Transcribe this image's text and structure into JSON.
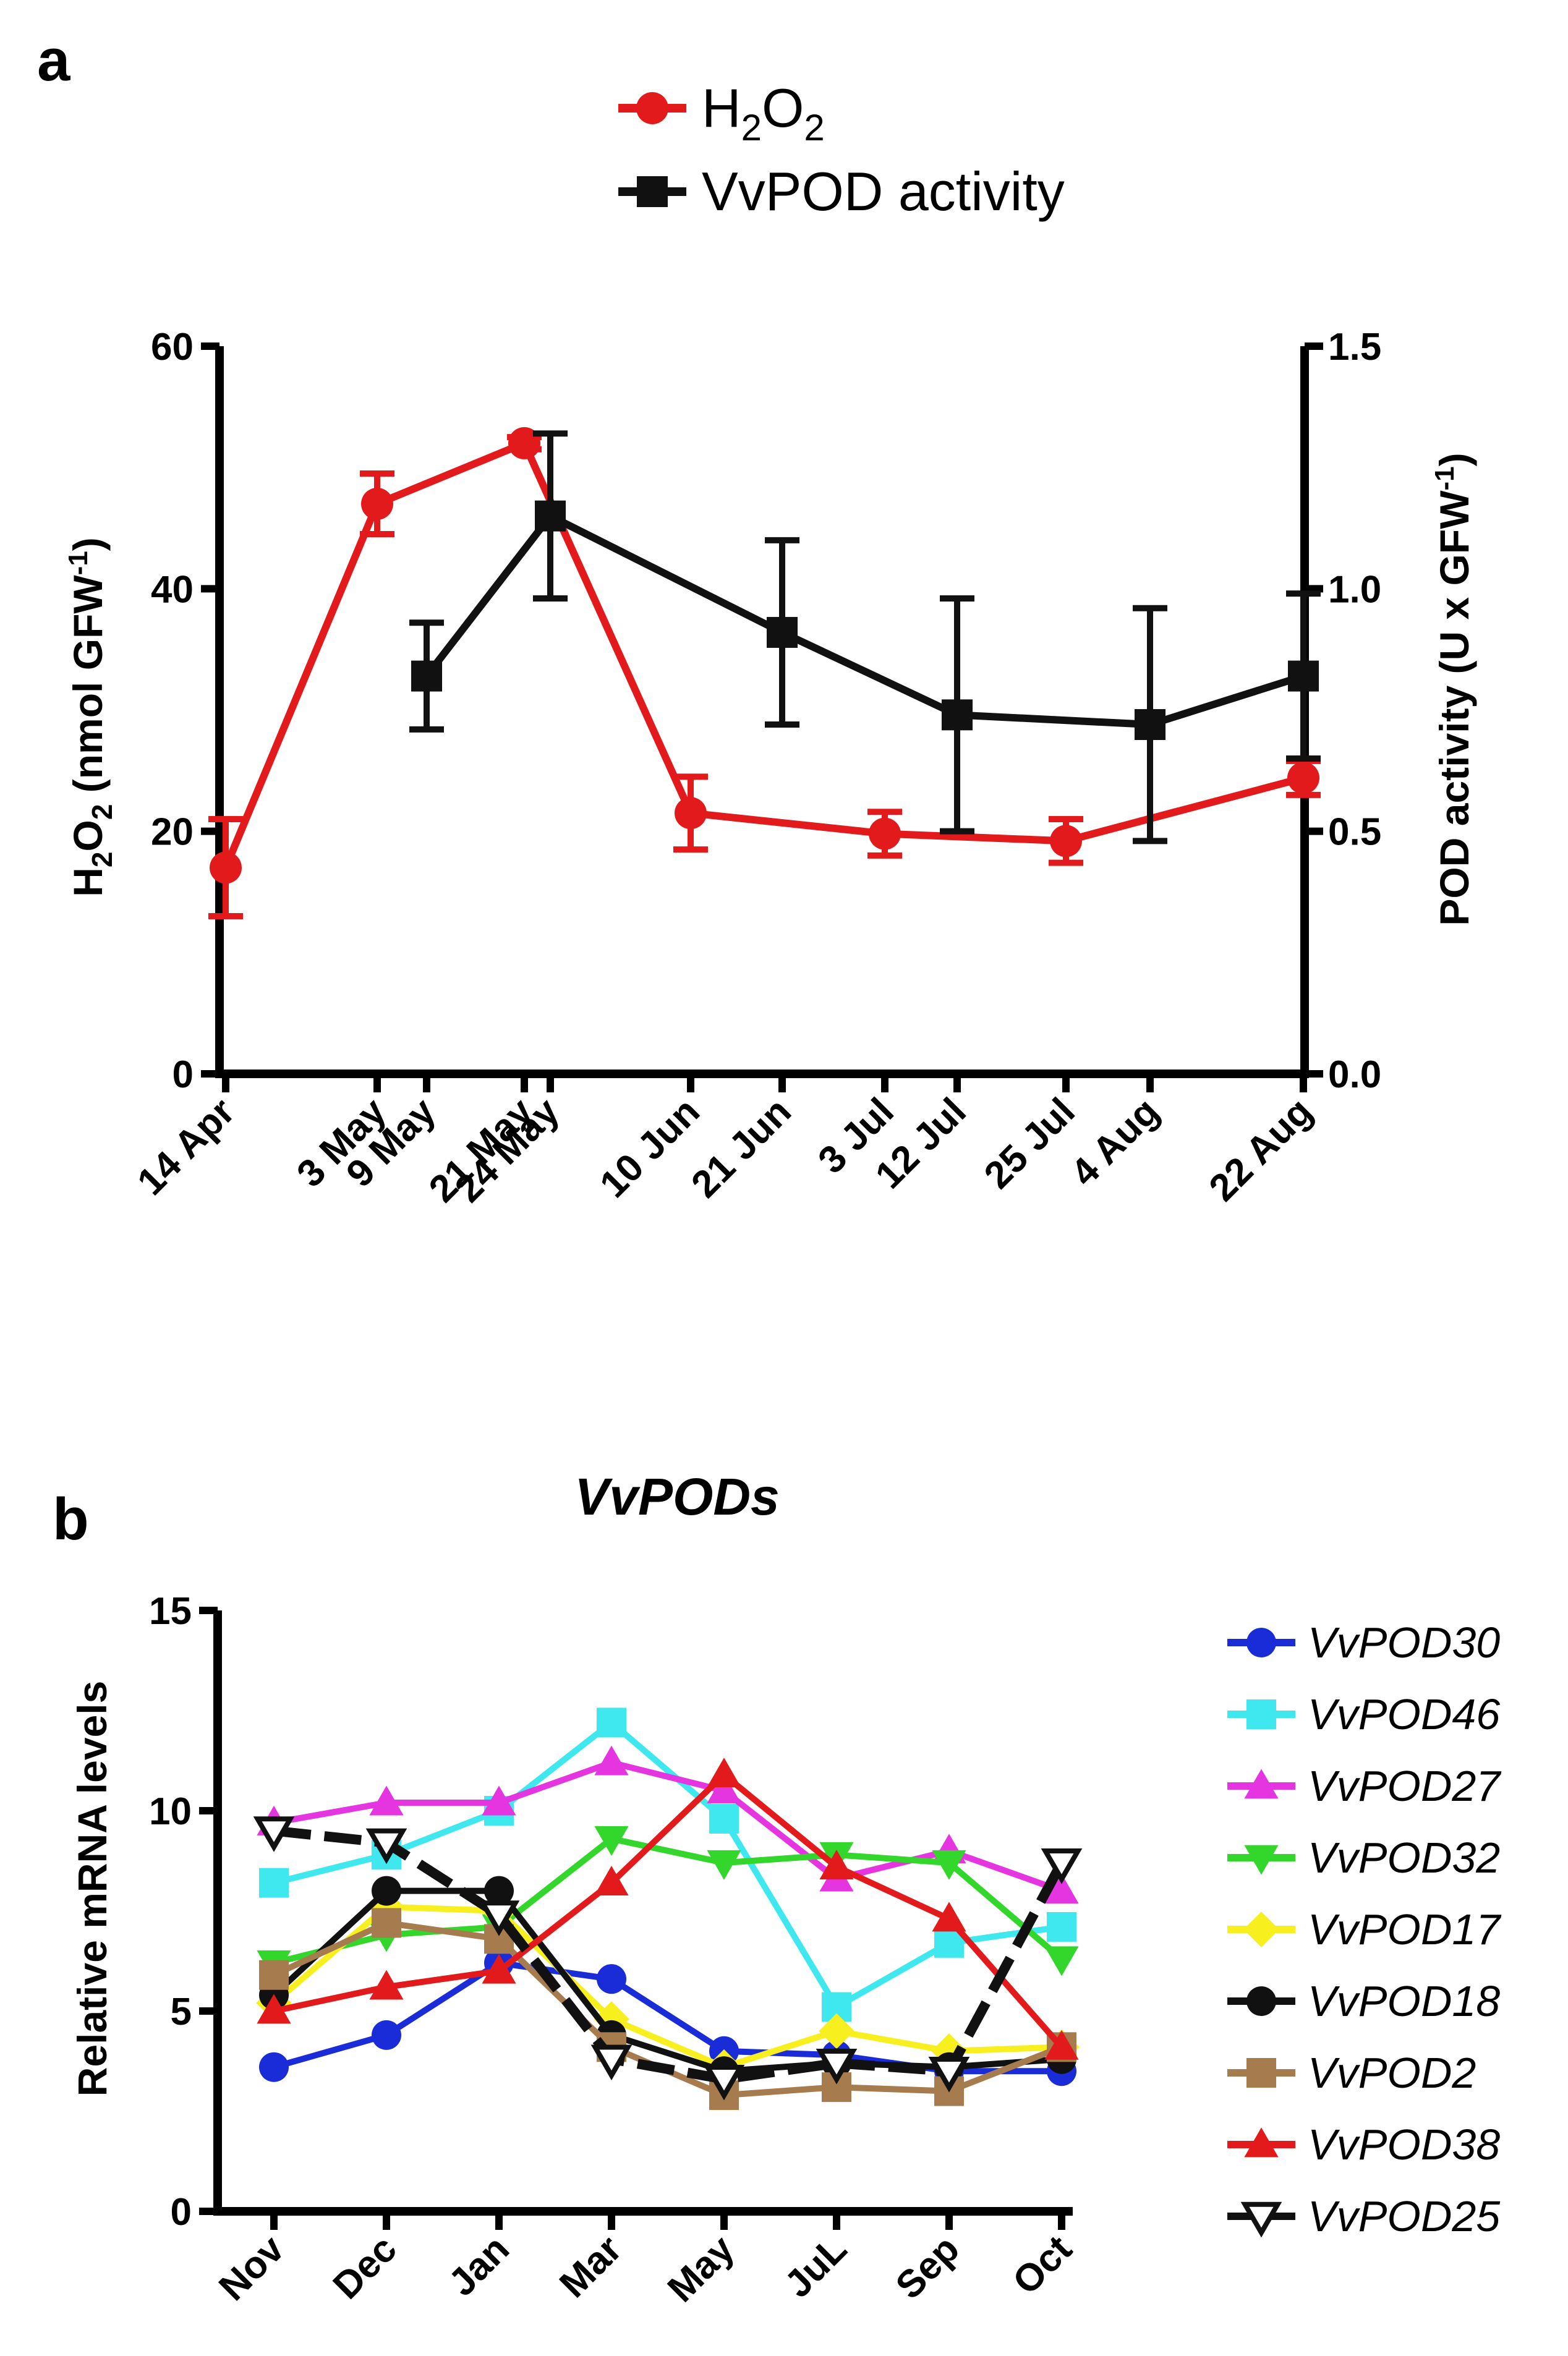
{
  "chart_data": [
    {
      "panel_label": "a",
      "type": "line",
      "categories": [
        "14 Apr",
        "3 May",
        "9 May",
        "21 May",
        "24 May",
        "10 Jun",
        "21 Jun",
        "3 Jul",
        "12 Jul",
        "25 Jul",
        "4 Aug",
        "22 Aug"
      ],
      "xlabel": "",
      "ylabel_left": {
        "prefix": "H",
        "sub1": "2",
        "mid": "O",
        "sub2": "2",
        "suffix": " (nmol GFW",
        "sup": "-1",
        "end": ")"
      },
      "ylabel_right": {
        "text": "POD activity (U x GFW",
        "sup": "-1",
        "end": ")"
      },
      "ylim_left": [
        0,
        60
      ],
      "yticks_left": [
        "0",
        "20",
        "40",
        "60"
      ],
      "ylim_right": [
        0,
        1.5
      ],
      "yticks_right": [
        "0.0",
        "0.5",
        "1.0",
        "1.5"
      ],
      "legend": [
        {
          "base": "H",
          "sub1": "2",
          "mid": "O",
          "sub2": "2",
          "full": "H2O2",
          "color": "#e31a1c",
          "marker": "circle"
        },
        {
          "text": "VvPOD activity",
          "color": "#111111",
          "marker": "square"
        }
      ],
      "series": [
        {
          "name": "H2O2",
          "axis": "left",
          "color": "#e31a1c",
          "marker": "circle",
          "points": [
            {
              "x": "14 Apr",
              "y": 17,
              "err": 4
            },
            {
              "x": "3 May",
              "y": 47,
              "err": 2.5
            },
            {
              "x": "21 May",
              "y": 52,
              "err": 0.5
            },
            {
              "x": "10 Jun",
              "y": 21.5,
              "err": 3
            },
            {
              "x": "3 Jul",
              "y": 19.8,
              "err": 1.8
            },
            {
              "x": "25 Jul",
              "y": 19.2,
              "err": 1.8
            },
            {
              "x": "22 Aug",
              "y": 24.4,
              "err": 1.4
            }
          ]
        },
        {
          "name": "VvPOD activity",
          "axis": "right",
          "color": "#111111",
          "marker": "square",
          "points": [
            {
              "x": "9 May",
              "y": 0.82,
              "err": 0.11
            },
            {
              "x": "24 May",
              "y": 1.15,
              "err": 0.17
            },
            {
              "x": "21 Jun",
              "y": 0.91,
              "err": 0.19
            },
            {
              "x": "12 Jul",
              "y": 0.74,
              "err": 0.24
            },
            {
              "x": "4 Aug",
              "y": 0.72,
              "err": 0.24
            },
            {
              "x": "22 Aug",
              "y": 0.82,
              "err": 0.17
            }
          ]
        }
      ]
    },
    {
      "panel_label": "b",
      "type": "line",
      "title": "VvPODs",
      "categories": [
        "Nov",
        "Dec",
        "Jan",
        "Mar",
        "May",
        "JuL",
        "Sep",
        "Oct"
      ],
      "xlabel": "",
      "ylabel": "Relative mRNA levels",
      "ylim": [
        0,
        15
      ],
      "yticks": [
        "0",
        "5",
        "10",
        "15"
      ],
      "series": [
        {
          "name": "VvPOD30",
          "color": "#1a2bd8",
          "marker": "circle",
          "values": [
            3.6,
            4.4,
            6.2,
            5.8,
            4.0,
            3.9,
            3.5,
            3.5
          ]
        },
        {
          "name": "VvPOD46",
          "color": "#3fe8ef",
          "marker": "square",
          "values": [
            8.2,
            8.9,
            10.0,
            12.2,
            9.8,
            5.1,
            6.7,
            7.1
          ]
        },
        {
          "name": "VvPOD27",
          "color": "#e535e0",
          "marker": "triangle-up",
          "values": [
            9.7,
            10.2,
            10.2,
            11.2,
            10.5,
            8.3,
            9.0,
            8.0
          ]
        },
        {
          "name": "VvPOD32",
          "color": "#33d62a",
          "marker": "triangle-down",
          "values": [
            6.2,
            6.9,
            7.1,
            9.3,
            8.7,
            8.9,
            8.7,
            6.3
          ]
        },
        {
          "name": "VvPOD17",
          "color": "#f7ef1e",
          "marker": "diamond",
          "values": [
            5.2,
            7.6,
            7.5,
            4.8,
            3.6,
            4.5,
            4.0,
            4.1
          ]
        },
        {
          "name": "VvPOD18",
          "color": "#111111",
          "marker": "circle",
          "values": [
            5.4,
            8.0,
            8.0,
            4.4,
            3.5,
            3.7,
            3.6,
            3.8
          ]
        },
        {
          "name": "VvPOD2",
          "color": "#a67c4f",
          "marker": "square",
          "values": [
            5.9,
            7.2,
            6.8,
            4.1,
            2.9,
            3.1,
            3.0,
            4.1
          ]
        },
        {
          "name": "VvPOD38",
          "color": "#e31a1c",
          "marker": "triangle-up",
          "values": [
            5.0,
            5.6,
            6.0,
            8.2,
            10.9,
            8.6,
            7.3,
            4.1
          ]
        },
        {
          "name": "VvPOD25",
          "color": "#111111",
          "marker": "triangle-down-open",
          "values": [
            9.5,
            9.2,
            7.4,
            3.8,
            3.3,
            3.7,
            3.5,
            8.7
          ]
        }
      ]
    }
  ]
}
